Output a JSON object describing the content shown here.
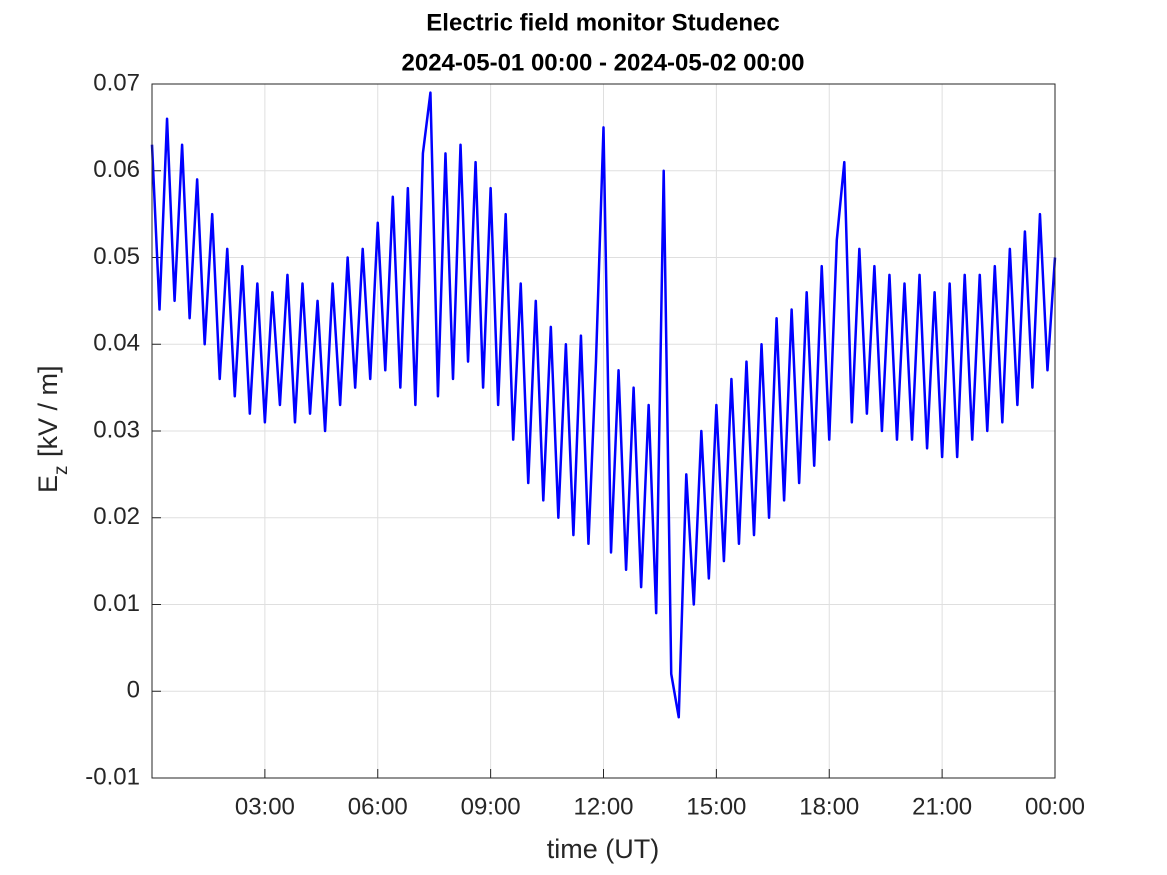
{
  "chart_data": {
    "type": "line",
    "title": "Electric field monitor Studenec",
    "subtitle": "2024-05-01 00:00 - 2024-05-02 00:00",
    "xlabel": "time (UT)",
    "ylabel": "E",
    "ylabel_subscript": "z",
    "ylabel_unit": "[kV / m]",
    "xlim": [
      0,
      24
    ],
    "xticks": [
      {
        "value": 3,
        "label": "03:00"
      },
      {
        "value": 6,
        "label": "06:00"
      },
      {
        "value": 9,
        "label": "09:00"
      },
      {
        "value": 12,
        "label": "12:00"
      },
      {
        "value": 15,
        "label": "15:00"
      },
      {
        "value": 18,
        "label": "18:00"
      },
      {
        "value": 21,
        "label": "21:00"
      },
      {
        "value": 24,
        "label": "00:00"
      }
    ],
    "ylim": [
      -0.01,
      0.07
    ],
    "yticks": [
      -0.01,
      0,
      0.01,
      0.02,
      0.03,
      0.04,
      0.05,
      0.06,
      0.07
    ],
    "grid": true,
    "x": [
      0,
      0.2,
      0.4,
      0.6,
      0.8,
      1,
      1.2,
      1.4,
      1.6,
      1.8,
      2,
      2.2,
      2.4,
      2.6,
      2.8,
      3,
      3.2,
      3.4,
      3.6,
      3.8,
      4,
      4.2,
      4.4,
      4.6,
      4.8,
      5,
      5.2,
      5.4,
      5.6,
      5.8,
      6,
      6.2,
      6.4,
      6.6,
      6.8,
      7,
      7.2,
      7.4,
      7.6,
      7.8,
      8,
      8.2,
      8.4,
      8.6,
      8.8,
      9,
      9.2,
      9.4,
      9.6,
      9.8,
      10,
      10.2,
      10.4,
      10.6,
      10.8,
      11,
      11.2,
      11.4,
      11.6,
      11.8,
      12,
      12.2,
      12.4,
      12.6,
      12.8,
      13,
      13.2,
      13.4,
      13.6,
      13.8,
      14,
      14.2,
      14.4,
      14.6,
      14.8,
      15,
      15.2,
      15.4,
      15.6,
      15.8,
      16,
      16.2,
      16.4,
      16.6,
      16.8,
      17,
      17.2,
      17.4,
      17.6,
      17.8,
      18,
      18.2,
      18.4,
      18.6,
      18.8,
      19,
      19.2,
      19.4,
      19.6,
      19.8,
      20,
      20.2,
      20.4,
      20.6,
      20.8,
      21,
      21.2,
      21.4,
      21.6,
      21.8,
      22,
      22.2,
      22.4,
      22.6,
      22.8,
      23,
      23.2,
      23.4,
      23.6,
      23.8,
      24
    ],
    "series": [
      {
        "color": "#0000ff",
        "values": [
          0.063,
          0.044,
          0.066,
          0.045,
          0.063,
          0.043,
          0.059,
          0.04,
          0.055,
          0.036,
          0.051,
          0.034,
          0.049,
          0.032,
          0.047,
          0.031,
          0.046,
          0.033,
          0.048,
          0.031,
          0.047,
          0.032,
          0.045,
          0.03,
          0.047,
          0.033,
          0.05,
          0.035,
          0.051,
          0.036,
          0.054,
          0.037,
          0.057,
          0.035,
          0.058,
          0.033,
          0.062,
          0.069,
          0.034,
          0.062,
          0.036,
          0.063,
          0.038,
          0.061,
          0.035,
          0.058,
          0.033,
          0.055,
          0.029,
          0.047,
          0.024,
          0.045,
          0.022,
          0.042,
          0.02,
          0.04,
          0.018,
          0.041,
          0.017,
          0.038,
          0.065,
          0.016,
          0.037,
          0.014,
          0.035,
          0.012,
          0.033,
          0.009,
          0.06,
          0.002,
          -0.003,
          0.025,
          0.01,
          0.03,
          0.013,
          0.033,
          0.015,
          0.036,
          0.017,
          0.038,
          0.018,
          0.04,
          0.02,
          0.043,
          0.022,
          0.044,
          0.024,
          0.046,
          0.026,
          0.049,
          0.029,
          0.052,
          0.061,
          0.031,
          0.051,
          0.032,
          0.049,
          0.03,
          0.048,
          0.029,
          0.047,
          0.029,
          0.048,
          0.028,
          0.046,
          0.027,
          0.047,
          0.027,
          0.048,
          0.029,
          0.048,
          0.03,
          0.049,
          0.031,
          0.051,
          0.033,
          0.053,
          0.035,
          0.055,
          0.037,
          0.05
        ]
      }
    ]
  }
}
